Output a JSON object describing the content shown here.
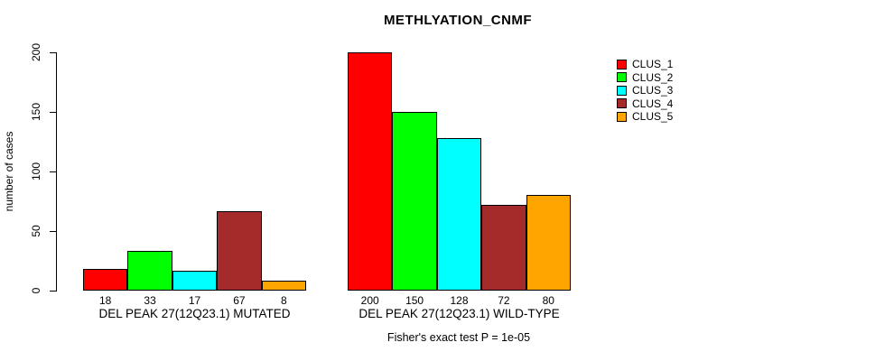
{
  "title": "METHLYATION_CNMF",
  "footer": "Fisher's exact test P = 1e-05",
  "ylabel": "number of cases",
  "colors": {
    "clus_1": "#FF0000",
    "clus_2": "#00FF00",
    "clus_3": "#00FFFF",
    "clus_4": "#A52A2A",
    "clus_5": "#FFA500",
    "axis": "#000000",
    "background": "#FFFFFF"
  },
  "chart_data": {
    "type": "bar",
    "title": "METHLYATION_CNMF",
    "xlabel": "",
    "ylabel": "number of cases",
    "ylim": [
      0,
      200
    ],
    "yticks": [
      0,
      50,
      100,
      150,
      200
    ],
    "grid": false,
    "legend_position": "right",
    "legend": [
      {
        "label": "CLUS_1",
        "color": "#FF0000"
      },
      {
        "label": "CLUS_2",
        "color": "#00FF00"
      },
      {
        "label": "CLUS_3",
        "color": "#00FFFF"
      },
      {
        "label": "CLUS_4",
        "color": "#A52A2A"
      },
      {
        "label": "CLUS_5",
        "color": "#FFA500"
      }
    ],
    "bar_colors": [
      "#FF0000",
      "#00FF00",
      "#00FFFF",
      "#A52A2A",
      "#FFA500"
    ],
    "groups": [
      {
        "label": "DEL PEAK 27(12Q23.1) MUTATED",
        "series": [
          "CLUS_1",
          "CLUS_2",
          "CLUS_3",
          "CLUS_4",
          "CLUS_5"
        ],
        "values": [
          18,
          33,
          17,
          67,
          8
        ]
      },
      {
        "label": "DEL PEAK 27(12Q23.1) WILD-TYPE",
        "series": [
          "CLUS_1",
          "CLUS_2",
          "CLUS_3",
          "CLUS_4",
          "CLUS_5"
        ],
        "values": [
          200,
          150,
          128,
          72,
          80
        ]
      }
    ],
    "annotation": "Fisher's exact test P = 1e-05"
  }
}
